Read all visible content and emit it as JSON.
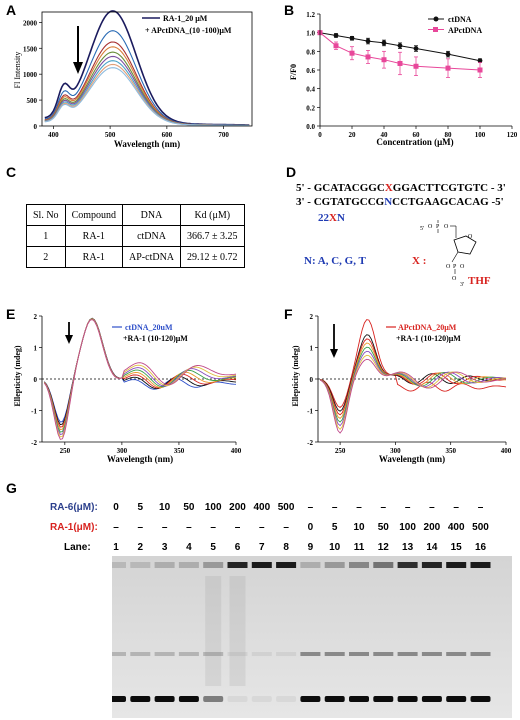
{
  "panels": {
    "A": "A",
    "B": "B",
    "C": "C",
    "D": "D",
    "E": "E",
    "F": "F",
    "G": "G"
  },
  "panelA": {
    "ylabel": "Fl Intensity",
    "xlabel": "Wavelength (nm)",
    "legend": [
      "RA-1_20 μM",
      "+ APctDNA_(10 -100)μM"
    ],
    "yticks": [
      "0",
      "500",
      "1000",
      "1500",
      "2000"
    ],
    "xticks": [
      "400",
      "500",
      "600",
      "700"
    ]
  },
  "panelB": {
    "ylabel": "F/F0",
    "xlabel": "Concentration (μM)",
    "legend": [
      "ctDNA",
      "APctDNA"
    ],
    "yticks": [
      "0.0",
      "0.2",
      "0.4",
      "0.6",
      "0.8",
      "1.0",
      "1.2"
    ],
    "xticks": [
      "0",
      "20",
      "40",
      "60",
      "80",
      "100",
      "120"
    ]
  },
  "chart_data": [
    {
      "type": "line",
      "xlabel": "Wavelength (nm)",
      "ylabel": "Fl Intensity",
      "xlim": [
        380,
        750
      ],
      "ylim": [
        0,
        2200
      ],
      "series": [
        {
          "name": "RA-1_20 μM",
          "color": "#1b1b5e",
          "peak": 2150
        },
        {
          "color": "#2a6bb5",
          "peak": 1780
        },
        {
          "color": "#a83232",
          "peak": 1570
        },
        {
          "color": "#d9803a",
          "peak": 1480
        },
        {
          "color": "#6a8e3a",
          "peak": 1380
        },
        {
          "color": "#7b4fa0",
          "peak": 1300
        },
        {
          "color": "#4aa3c7",
          "peak": 1220
        },
        {
          "color": "#e0a07a",
          "peak": 1150
        },
        {
          "color": "#8fbde0",
          "peak": 1090
        }
      ]
    },
    {
      "type": "scatter",
      "xlabel": "Concentration (μM)",
      "ylabel": "F/F0",
      "xlim": [
        0,
        120
      ],
      "ylim": [
        0.0,
        1.2
      ],
      "series": [
        {
          "name": "ctDNA",
          "color": "#111111",
          "x": [
            0,
            10,
            20,
            30,
            40,
            50,
            60,
            80,
            100
          ],
          "y": [
            1.0,
            0.97,
            0.94,
            0.91,
            0.89,
            0.86,
            0.83,
            0.77,
            0.7
          ],
          "err": [
            0.01,
            0.02,
            0.02,
            0.03,
            0.03,
            0.03,
            0.03,
            0.03,
            0.02
          ]
        },
        {
          "name": "APctDNA",
          "color": "#e8479a",
          "x": [
            0,
            10,
            20,
            30,
            40,
            50,
            60,
            80,
            100
          ],
          "y": [
            1.0,
            0.86,
            0.78,
            0.74,
            0.71,
            0.67,
            0.64,
            0.62,
            0.6
          ],
          "err": [
            0.01,
            0.04,
            0.07,
            0.07,
            0.09,
            0.12,
            0.1,
            0.1,
            0.08
          ]
        }
      ]
    },
    {
      "type": "line",
      "xlabel": "Wavelength (nm)",
      "ylabel": "Ellepticity (mdeg)",
      "xlim": [
        230,
        400
      ],
      "ylim": [
        -2,
        2
      ],
      "series": [
        {
          "name": "ctDNA_20uM",
          "color": "#2e4fc9"
        },
        {
          "name": "+RA-1 (10-120)μM",
          "color": "#111111"
        }
      ]
    },
    {
      "type": "line",
      "xlabel": "Wavelength (nm)",
      "ylabel": "Ellepticity (mdeg)",
      "xlim": [
        230,
        400
      ],
      "ylim": [
        -2,
        2
      ],
      "series": [
        {
          "name": "APctDNA_20μM",
          "color": "#d8231f"
        },
        {
          "name": "+RA-1 (10-120)μM",
          "color": "#111111"
        }
      ]
    }
  ],
  "panelC": {
    "headers": [
      "Sl. No",
      "Compound",
      "DNA",
      "Kd (μM)"
    ],
    "rows": [
      [
        "1",
        "RA-1",
        "ctDNA",
        "366.7 ± 3.25"
      ],
      [
        "2",
        "RA-1",
        "AP-ctDNA",
        "29.12 ± 0.72"
      ]
    ]
  },
  "panelD": {
    "seq1a": "5' - GCATACGGC",
    "seq1x": "X",
    "seq1b": "GGACTTCGTGTC - 3'",
    "seq2a": "3' - CGTATGCCG",
    "seq2n": "N",
    "seq2b": "CCTGAAGCACAG -5'",
    "len": "22",
    "lenx": "X",
    "lenn": "N",
    "nlabel": "N: A, C, G, T",
    "xlabel": "X :",
    "thf": "THF",
    "five": "5'",
    "three": "3'"
  },
  "panelE": {
    "ylabel": "Ellepticity (mdeg)",
    "xlabel": "Wavelength (nm)",
    "legend": [
      "ctDNA_20uM",
      "+RA-1 (10-120)μM"
    ],
    "yticks": [
      "-2",
      "-1",
      "0",
      "1",
      "2"
    ],
    "xticks": [
      "250",
      "300",
      "350",
      "400"
    ]
  },
  "panelF": {
    "ylabel": "Ellepticity (mdeg)",
    "xlabel": "Wavelength (nm)",
    "legend": [
      "APctDNA_20μM",
      "+RA-1 (10-120)μM"
    ],
    "yticks": [
      "-2",
      "-1",
      "0",
      "1",
      "2"
    ],
    "xticks": [
      "250",
      "300",
      "350",
      "400"
    ]
  },
  "panelG": {
    "ra6_label": "RA-6(μM):",
    "ra1_label": "RA-1(μM):",
    "lane_label": "Lane:",
    "ra6": [
      "0",
      "5",
      "10",
      "50",
      "100",
      "200",
      "400",
      "500",
      "–",
      "–",
      "–",
      "–",
      "–",
      "–",
      "–",
      "–"
    ],
    "ra1": [
      "–",
      "–",
      "–",
      "–",
      "–",
      "–",
      "–",
      "–",
      "0",
      "5",
      "10",
      "50",
      "100",
      "200",
      "400",
      "500"
    ],
    "lanes": [
      "1",
      "2",
      "3",
      "4",
      "5",
      "6",
      "7",
      "8",
      "9",
      "10",
      "11",
      "12",
      "13",
      "14",
      "15",
      "16"
    ]
  }
}
